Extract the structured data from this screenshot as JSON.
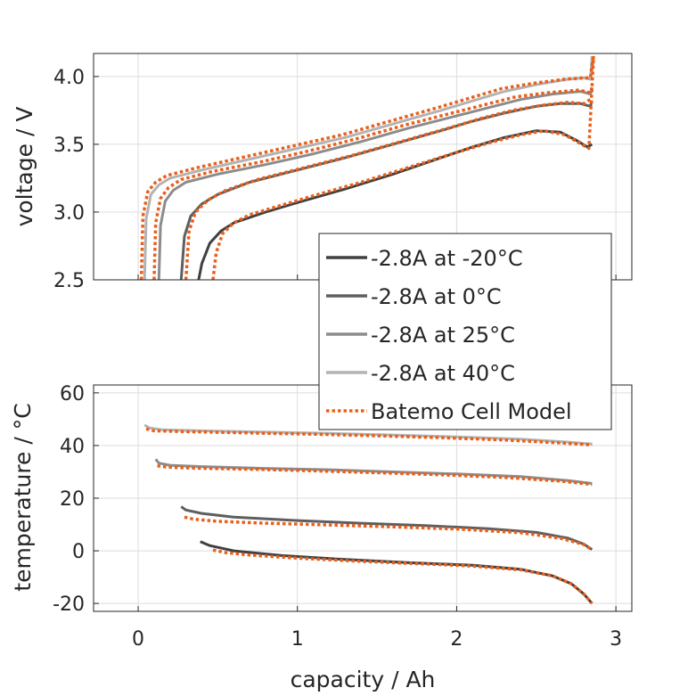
{
  "chart_data": [
    {
      "type": "line",
      "title": "",
      "xlabel": "",
      "ylabel": "voltage / V",
      "xlim": [
        -0.28,
        3.1
      ],
      "ylim": [
        2.5,
        4.17
      ],
      "xticks": [
        0,
        1,
        2,
        3
      ],
      "yticks": [
        {
          "value": 2.5,
          "label": "2.5"
        },
        {
          "value": 3.0,
          "label": "3.0"
        },
        {
          "value": 3.5,
          "label": "3.5"
        },
        {
          "value": 4.0,
          "label": "4.0"
        }
      ],
      "grid": true,
      "series": [
        {
          "name": "-2.8A at -20°C",
          "color": "#404040",
          "x": [
            0.38,
            0.4,
            0.45,
            0.52,
            0.6,
            0.8,
            1.0,
            1.3,
            1.6,
            1.9,
            2.1,
            2.3,
            2.5,
            2.65,
            2.75,
            2.82,
            2.85
          ],
          "y": [
            2.5,
            2.62,
            2.77,
            2.86,
            2.92,
            3.0,
            3.07,
            3.17,
            3.28,
            3.4,
            3.48,
            3.55,
            3.6,
            3.59,
            3.53,
            3.48,
            3.5
          ]
        },
        {
          "name": "-2.8A at 0°C",
          "color": "#5e5e5e",
          "x": [
            0.27,
            0.29,
            0.33,
            0.4,
            0.5,
            0.7,
            1.0,
            1.3,
            1.6,
            1.9,
            2.1,
            2.3,
            2.5,
            2.65,
            2.78,
            2.84,
            2.85
          ],
          "y": [
            2.5,
            2.82,
            2.97,
            3.06,
            3.13,
            3.22,
            3.31,
            3.4,
            3.5,
            3.6,
            3.67,
            3.73,
            3.78,
            3.8,
            3.8,
            3.78,
            3.82
          ]
        },
        {
          "name": "-2.8A at 25°C",
          "color": "#8c8c8c",
          "x": [
            0.13,
            0.14,
            0.17,
            0.22,
            0.3,
            0.5,
            0.8,
            1.1,
            1.4,
            1.7,
            2.0,
            2.2,
            2.4,
            2.6,
            2.78,
            2.84,
            2.85
          ],
          "y": [
            2.5,
            2.9,
            3.08,
            3.16,
            3.22,
            3.28,
            3.35,
            3.43,
            3.52,
            3.62,
            3.71,
            3.77,
            3.83,
            3.87,
            3.89,
            3.87,
            3.9
          ]
        },
        {
          "name": "-2.8A at 40°C",
          "color": "#b3b3b3",
          "x": [
            0.04,
            0.05,
            0.08,
            0.13,
            0.2,
            0.4,
            0.7,
            1.0,
            1.3,
            1.6,
            1.9,
            2.1,
            2.3,
            2.5,
            2.7,
            2.8,
            2.84,
            2.85
          ],
          "y": [
            2.5,
            2.95,
            3.13,
            3.2,
            3.25,
            3.31,
            3.39,
            3.47,
            3.55,
            3.65,
            3.75,
            3.82,
            3.89,
            3.94,
            3.98,
            3.99,
            3.98,
            4.15
          ]
        },
        {
          "name": "Batemo Cell Model",
          "color": "#e8601c",
          "dashed": true,
          "segments": [
            {
              "x": [
                0.47,
                0.49,
                0.53,
                0.6,
                0.7,
                0.9,
                1.1,
                1.4,
                1.7,
                2.0,
                2.2,
                2.4,
                2.55,
                2.68,
                2.77,
                2.83,
                2.86
              ],
              "y": [
                2.5,
                2.7,
                2.84,
                2.92,
                2.98,
                3.05,
                3.12,
                3.22,
                3.33,
                3.44,
                3.51,
                3.57,
                3.6,
                3.57,
                3.51,
                3.47,
                4.15
              ]
            },
            {
              "x": [
                0.3,
                0.32,
                0.36,
                0.44,
                0.55,
                0.75,
                1.05,
                1.35,
                1.65,
                1.95,
                2.15,
                2.35,
                2.55,
                2.7,
                2.8,
                2.85
              ],
              "y": [
                2.5,
                2.86,
                3.0,
                3.09,
                3.16,
                3.24,
                3.33,
                3.42,
                3.52,
                3.62,
                3.69,
                3.75,
                3.79,
                3.81,
                3.8,
                3.84
              ]
            },
            {
              "x": [
                0.1,
                0.11,
                0.14,
                0.19,
                0.27,
                0.47,
                0.77,
                1.07,
                1.37,
                1.67,
                1.97,
                2.17,
                2.37,
                2.57,
                2.77,
                2.84,
                2.85
              ],
              "y": [
                2.5,
                2.92,
                3.1,
                3.18,
                3.24,
                3.3,
                3.37,
                3.45,
                3.54,
                3.64,
                3.73,
                3.79,
                3.85,
                3.88,
                3.9,
                3.88,
                3.92
              ]
            },
            {
              "x": [
                0.02,
                0.03,
                0.06,
                0.11,
                0.18,
                0.38,
                0.68,
                0.98,
                1.28,
                1.58,
                1.88,
                2.08,
                2.28,
                2.48,
                2.68,
                2.8,
                2.84,
                2.86
              ],
              "y": [
                2.5,
                2.97,
                3.15,
                3.22,
                3.27,
                3.33,
                3.41,
                3.49,
                3.57,
                3.67,
                3.77,
                3.84,
                3.91,
                3.95,
                3.98,
                3.99,
                3.99,
                4.15
              ]
            }
          ]
        }
      ]
    },
    {
      "type": "line",
      "title": "",
      "xlabel": "capacity / Ah",
      "ylabel": "temperature / °C",
      "xlim": [
        -0.28,
        3.1
      ],
      "ylim": [
        -23,
        63
      ],
      "xticks": [
        0,
        1,
        2,
        3
      ],
      "yticks": [
        {
          "value": -20,
          "label": "-20"
        },
        {
          "value": 0,
          "label": "0"
        },
        {
          "value": 20,
          "label": "20"
        },
        {
          "value": 40,
          "label": "40"
        },
        {
          "value": 60,
          "label": "60"
        }
      ],
      "grid": true,
      "series": [
        {
          "name": "-2.8A at -20°C",
          "color": "#404040",
          "x": [
            0.39,
            0.45,
            0.6,
            0.9,
            1.3,
            1.7,
            2.1,
            2.4,
            2.6,
            2.72,
            2.8,
            2.85
          ],
          "y": [
            3.5,
            2.0,
            0.0,
            -1.8,
            -3.3,
            -4.5,
            -5.5,
            -7.0,
            -9.5,
            -12.5,
            -16.5,
            -20.0
          ]
        },
        {
          "name": "-2.8A at 0°C",
          "color": "#5e5e5e",
          "x": [
            0.27,
            0.3,
            0.4,
            0.6,
            1.0,
            1.4,
            1.8,
            2.2,
            2.5,
            2.7,
            2.8,
            2.85
          ],
          "y": [
            16.8,
            15.5,
            14.2,
            12.8,
            11.5,
            10.5,
            9.6,
            8.4,
            7.0,
            4.8,
            2.5,
            0.5
          ]
        },
        {
          "name": "-2.8A at 25°C",
          "color": "#8c8c8c",
          "x": [
            0.11,
            0.13,
            0.2,
            0.4,
            0.8,
            1.2,
            1.6,
            2.0,
            2.4,
            2.7,
            2.85
          ],
          "y": [
            34.8,
            33.3,
            32.5,
            32.0,
            31.3,
            30.8,
            30.0,
            29.2,
            28.2,
            26.7,
            25.6
          ]
        },
        {
          "name": "-2.8A at 40°C",
          "color": "#b3b3b3",
          "x": [
            0.04,
            0.07,
            0.15,
            0.4,
            0.8,
            1.2,
            1.6,
            2.0,
            2.4,
            2.7,
            2.85
          ],
          "y": [
            47.8,
            46.7,
            46.0,
            45.6,
            45.1,
            44.6,
            44.0,
            43.3,
            42.4,
            41.3,
            40.6
          ]
        },
        {
          "name": "Batemo Cell Model",
          "color": "#e8601c",
          "dashed": true,
          "segments": [
            {
              "x": [
                0.47,
                0.55,
                0.7,
                1.0,
                1.4,
                1.8,
                2.1,
                2.4,
                2.6,
                2.72,
                2.8,
                2.85
              ],
              "y": [
                0.3,
                -0.7,
                -1.6,
                -2.8,
                -4.0,
                -5.0,
                -5.8,
                -7.2,
                -9.5,
                -12.5,
                -16.5,
                -20.0
              ]
            },
            {
              "x": [
                0.29,
                0.35,
                0.5,
                0.8,
                1.2,
                1.6,
                2.0,
                2.4,
                2.65,
                2.8,
                2.85
              ],
              "y": [
                12.8,
                12.0,
                11.2,
                10.5,
                9.8,
                9.1,
                8.3,
                6.9,
                4.8,
                2.4,
                0.3
              ]
            },
            {
              "x": [
                0.12,
                0.18,
                0.35,
                0.7,
                1.1,
                1.5,
                1.9,
                2.3,
                2.65,
                2.85
              ],
              "y": [
                32.3,
                31.8,
                31.4,
                31.0,
                30.4,
                29.7,
                28.9,
                27.9,
                26.5,
                25.2
              ]
            },
            {
              "x": [
                0.05,
                0.1,
                0.3,
                0.7,
                1.1,
                1.5,
                1.9,
                2.3,
                2.65,
                2.85
              ],
              "y": [
                46.3,
                45.6,
                45.3,
                44.8,
                44.3,
                43.7,
                43.0,
                42.1,
                41.0,
                40.2
              ]
            }
          ]
        }
      ]
    }
  ]
}
